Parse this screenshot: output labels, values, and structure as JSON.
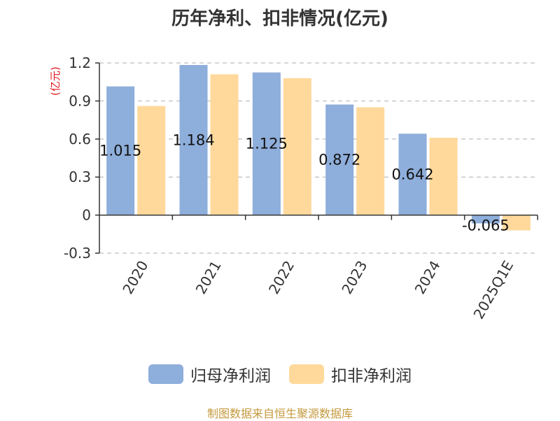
{
  "title": "历年净利、扣非情况(亿元)",
  "source_note": "制图数据来自恒生聚源数据库",
  "colors": {
    "series1": "#8eaedb",
    "series2": "#ffd99b",
    "grid": "#c8c8c8",
    "axis": "#333333",
    "ylabel": "#e0191f"
  },
  "chart_data": {
    "type": "bar",
    "title": "历年净利、扣非情况(亿元)",
    "xlabel": "",
    "ylabel": "(亿元)",
    "ylim": [
      -0.3,
      1.2
    ],
    "yticks": [
      -0.3,
      0,
      0.3,
      0.6,
      0.9,
      1.2
    ],
    "ytick_labels": [
      "-0.3",
      "0",
      "0.3",
      "0.6",
      "0.9",
      "1.2"
    ],
    "grid": true,
    "legend_position": "bottom",
    "categories": [
      "2020",
      "2021",
      "2022",
      "2023",
      "2024",
      "2025Q1E"
    ],
    "series": [
      {
        "name": "归母净利润",
        "values": [
          1.015,
          1.184,
          1.125,
          0.872,
          0.642,
          -0.065
        ],
        "labels": [
          "1.015",
          "1.184",
          "1.125",
          "0.872",
          "0.642",
          "-0.065"
        ]
      },
      {
        "name": "扣非净利润",
        "values": [
          0.86,
          1.11,
          1.08,
          0.85,
          0.61,
          -0.12
        ]
      }
    ]
  }
}
